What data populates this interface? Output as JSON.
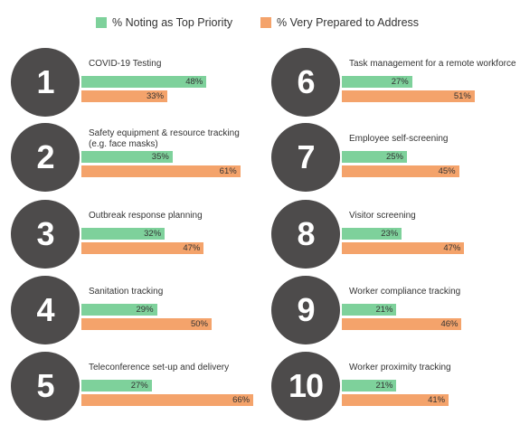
{
  "colors": {
    "top_priority": "#7ed19b",
    "very_prepared": "#f4a36b",
    "circle": "#4d4b4b"
  },
  "chart_data": {
    "type": "bar",
    "orientation": "horizontal",
    "legend": {
      "placement": "top",
      "entries": [
        "% Noting as Top Priority",
        "% Very Prepared to Address"
      ]
    },
    "series": [
      {
        "name": "% Noting as Top Priority",
        "values": [
          48,
          35,
          32,
          29,
          27,
          27,
          25,
          23,
          21,
          21
        ]
      },
      {
        "name": "% Very Prepared to Address",
        "values": [
          33,
          61,
          47,
          50,
          66,
          51,
          45,
          47,
          46,
          41
        ]
      }
    ],
    "items": [
      {
        "rank": "1",
        "label": [
          "COVID-19 Testing"
        ],
        "priority": 48,
        "prepared": 33
      },
      {
        "rank": "2",
        "label": [
          "Safety equipment & resource tracking",
          "(e.g. face masks)"
        ],
        "priority": 35,
        "prepared": 61
      },
      {
        "rank": "3",
        "label": [
          "Outbreak response planning"
        ],
        "priority": 32,
        "prepared": 47
      },
      {
        "rank": "4",
        "label": [
          "Sanitation tracking"
        ],
        "priority": 29,
        "prepared": 50
      },
      {
        "rank": "5",
        "label": [
          "Teleconference set-up and delivery"
        ],
        "priority": 27,
        "prepared": 66
      },
      {
        "rank": "6",
        "label": [
          "Task management for a remote workforce"
        ],
        "priority": 27,
        "prepared": 51
      },
      {
        "rank": "7",
        "label": [
          "Employee self-screening"
        ],
        "priority": 25,
        "prepared": 45
      },
      {
        "rank": "8",
        "label": [
          "Visitor screening"
        ],
        "priority": 23,
        "prepared": 47
      },
      {
        "rank": "9",
        "label": [
          "Worker compliance tracking"
        ],
        "priority": 21,
        "prepared": 46
      },
      {
        "rank": "10",
        "label": [
          "Worker proximity tracking"
        ],
        "priority": 21,
        "prepared": 41
      }
    ]
  }
}
